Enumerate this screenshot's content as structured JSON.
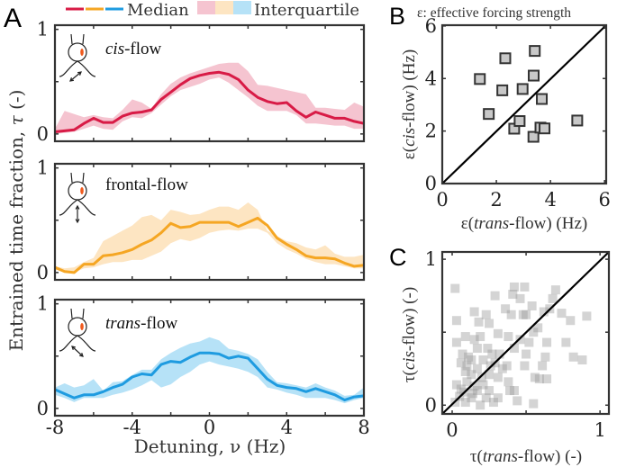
{
  "panel_labels": {
    "a": "A",
    "b": "B",
    "c": "C"
  },
  "legend": {
    "median_label": "Median",
    "iqr_label": "Interquartile"
  },
  "colors": {
    "cis": "#d81b46",
    "frontal": "#f5a623",
    "trans": "#1e9be0",
    "cis_band": "#f5c4d0",
    "frontal_band": "#fde5c2",
    "trans_band": "#b6e2f7",
    "scatter_b": "#c8c8c8",
    "scatter_c": "#999999"
  },
  "chart_data": [
    {
      "type": "area",
      "panel": "A",
      "ylabel": {
        "pre": "Entrained time fraction, ",
        "sym": "τ",
        "post": " (-)"
      },
      "xlabel": "Detuning, ν (Hz)",
      "xlim": [
        -8,
        8
      ],
      "ylim": [
        0,
        1
      ],
      "xticks": [
        "-8",
        "-4",
        "0",
        "4",
        "8"
      ],
      "yticks": [
        "0",
        "1"
      ],
      "x": [
        -8,
        -7.5,
        -7,
        -6.5,
        -6,
        -5.5,
        -5,
        -4.5,
        -4,
        -3.5,
        -3,
        -2.5,
        -2,
        -1.5,
        -1,
        -0.5,
        0,
        0.5,
        1,
        1.5,
        2,
        2.5,
        3,
        3.5,
        4,
        4.5,
        5,
        5.5,
        6,
        6.5,
        7,
        7.5,
        8
      ],
      "series": [
        {
          "key": "cis",
          "label_italic": "cis",
          "label_rest": "-flow",
          "median": [
            0.02,
            0.03,
            0.04,
            0.1,
            0.15,
            0.11,
            0.11,
            0.17,
            0.2,
            0.21,
            0.23,
            0.33,
            0.4,
            0.47,
            0.53,
            0.56,
            0.58,
            0.59,
            0.57,
            0.52,
            0.42,
            0.35,
            0.31,
            0.29,
            0.3,
            0.22,
            0.16,
            0.21,
            0.18,
            0.15,
            0.15,
            0.12,
            0.1
          ],
          "q_high": [
            0.05,
            0.22,
            0.19,
            0.16,
            0.18,
            0.16,
            0.15,
            0.23,
            0.33,
            0.3,
            0.24,
            0.38,
            0.48,
            0.54,
            0.58,
            0.61,
            0.64,
            0.67,
            0.68,
            0.68,
            0.6,
            0.47,
            0.46,
            0.44,
            0.42,
            0.4,
            0.38,
            0.25,
            0.25,
            0.24,
            0.23,
            0.3,
            0.26
          ],
          "q_low": [
            0,
            0.01,
            0.02,
            0.05,
            0.08,
            0.05,
            0.04,
            0.12,
            0.16,
            0.15,
            0.2,
            0.28,
            0.36,
            0.42,
            0.45,
            0.48,
            0.52,
            0.54,
            0.49,
            0.42,
            0.35,
            0.27,
            0.22,
            0.22,
            0.22,
            0.18,
            0.1,
            0.1,
            0.09,
            0.08,
            0.08,
            0.05,
            0.05
          ]
        },
        {
          "key": "frontal",
          "label_italic": "",
          "label_rest": "frontal-flow",
          "median": [
            0.05,
            0.01,
            0.0,
            0.08,
            0.08,
            0.16,
            0.17,
            0.19,
            0.22,
            0.27,
            0.31,
            0.38,
            0.47,
            0.43,
            0.44,
            0.48,
            0.48,
            0.48,
            0.48,
            0.44,
            0.48,
            0.52,
            0.45,
            0.33,
            0.27,
            0.22,
            0.16,
            0.14,
            0.14,
            0.13,
            0.09,
            0.06,
            0.07
          ],
          "q_high": [
            0.06,
            0.04,
            0.05,
            0.1,
            0.14,
            0.3,
            0.35,
            0.4,
            0.45,
            0.53,
            0.55,
            0.5,
            0.6,
            0.58,
            0.55,
            0.56,
            0.6,
            0.63,
            0.63,
            0.6,
            0.67,
            0.6,
            0.4,
            0.35,
            0.3,
            0.28,
            0.24,
            0.22,
            0.26,
            0.18,
            0.15,
            0.15,
            0.17
          ],
          "q_low": [
            0.03,
            0,
            0,
            0.04,
            0.05,
            0.08,
            0.1,
            0.1,
            0.12,
            0.12,
            0.16,
            0.2,
            0.28,
            0.32,
            0.3,
            0.33,
            0.38,
            0.4,
            0.41,
            0.4,
            0.42,
            0.42,
            0.38,
            0.28,
            0.22,
            0.18,
            0.13,
            0.1,
            0.08,
            0.08,
            0.06,
            0.04,
            0.04
          ]
        },
        {
          "key": "trans",
          "label_italic": "trans",
          "label_rest": "-flow",
          "median": [
            0.18,
            0.14,
            0.1,
            0.13,
            0.13,
            0.16,
            0.2,
            0.23,
            0.3,
            0.33,
            0.32,
            0.42,
            0.45,
            0.44,
            0.49,
            0.53,
            0.53,
            0.52,
            0.48,
            0.5,
            0.48,
            0.38,
            0.28,
            0.22,
            0.2,
            0.19,
            0.16,
            0.19,
            0.16,
            0.13,
            0.08,
            0.11,
            0.12
          ],
          "q_high": [
            0.2,
            0.24,
            0.2,
            0.22,
            0.28,
            0.17,
            0.25,
            0.26,
            0.32,
            0.37,
            0.37,
            0.47,
            0.53,
            0.58,
            0.62,
            0.64,
            0.68,
            0.65,
            0.57,
            0.55,
            0.52,
            0.47,
            0.35,
            0.25,
            0.24,
            0.22,
            0.2,
            0.24,
            0.2,
            0.17,
            0.12,
            0.13,
            0.2
          ],
          "q_low": [
            0.13,
            0.1,
            0.06,
            0.1,
            0.1,
            0.1,
            0.13,
            0.15,
            0.18,
            0.22,
            0.27,
            0.2,
            0.23,
            0.3,
            0.35,
            0.42,
            0.45,
            0.42,
            0.4,
            0.38,
            0.35,
            0.3,
            0.2,
            0.18,
            0.15,
            0.13,
            0.1,
            0.1,
            0.1,
            0.08,
            0.05,
            0.08,
            0.1
          ]
        }
      ]
    },
    {
      "type": "scatter",
      "panel": "B",
      "title": "ε: effective forcing strength",
      "xlabel": {
        "pre": "ε(",
        "it": "trans",
        "post": "-flow) (Hz)"
      },
      "ylabel": {
        "pre": "ε(",
        "it": "cis",
        "post": "-flow) (Hz)"
      },
      "xlim": [
        0,
        6
      ],
      "ylim": [
        0,
        6
      ],
      "xticks": [
        "0",
        "2",
        "4",
        "6"
      ],
      "yticks": [
        "0",
        "2",
        "4",
        "6"
      ],
      "identity_line": true,
      "points": [
        [
          1.39,
          3.98
        ],
        [
          1.72,
          2.65
        ],
        [
          2.33,
          4.77
        ],
        [
          2.22,
          3.55
        ],
        [
          2.97,
          3.6
        ],
        [
          2.66,
          2.09
        ],
        [
          2.86,
          2.38
        ],
        [
          3.38,
          4.11
        ],
        [
          3.42,
          5.05
        ],
        [
          3.68,
          3.22
        ],
        [
          3.37,
          1.78
        ],
        [
          3.63,
          2.13
        ],
        [
          3.78,
          2.1
        ],
        [
          4.99,
          2.4
        ]
      ]
    },
    {
      "type": "scatter",
      "panel": "C",
      "xlabel": {
        "pre": "τ(",
        "it": "trans",
        "post": "-flow) (-)"
      },
      "ylabel": {
        "pre": "τ(",
        "it": "cis",
        "post": "-flow) (-)"
      },
      "xlim": [
        0,
        1
      ],
      "ylim": [
        0,
        1
      ],
      "xticks": [
        "0",
        "1"
      ],
      "yticks": [
        "0",
        "1"
      ],
      "identity_line": true,
      "points": [
        [
          0.02,
          0.8
        ],
        [
          0.03,
          0.58
        ],
        [
          0.15,
          0.64
        ],
        [
          0.18,
          0.57
        ],
        [
          0.23,
          0.62
        ],
        [
          0.29,
          0.75
        ],
        [
          0.42,
          0.81
        ],
        [
          0.49,
          0.81
        ],
        [
          0.41,
          0.76
        ],
        [
          0.46,
          0.73
        ],
        [
          0.36,
          0.66
        ],
        [
          0.4,
          0.62
        ],
        [
          0.48,
          0.62
        ],
        [
          0.54,
          0.68
        ],
        [
          0.62,
          0.64
        ],
        [
          0.7,
          0.79
        ],
        [
          0.68,
          0.73
        ],
        [
          0.74,
          0.63
        ],
        [
          0.91,
          0.61
        ],
        [
          0.8,
          0.58
        ],
        [
          0.77,
          0.43
        ],
        [
          0.82,
          0.33
        ],
        [
          0.88,
          0.31
        ],
        [
          0.64,
          0.43
        ],
        [
          0.58,
          0.53
        ],
        [
          0.55,
          0.5
        ],
        [
          0.52,
          0.43
        ],
        [
          0.5,
          0.35
        ],
        [
          0.49,
          0.27
        ],
        [
          0.56,
          0.19
        ],
        [
          0.55,
          0.01
        ],
        [
          0.64,
          0.18
        ],
        [
          0.59,
          0.18
        ],
        [
          0.61,
          0.27
        ],
        [
          0.63,
          0.33
        ],
        [
          0.44,
          0.03
        ],
        [
          0.42,
          0.1
        ],
        [
          0.38,
          0.16
        ],
        [
          0.34,
          0.25
        ],
        [
          0.29,
          0.29
        ],
        [
          0.24,
          0.39
        ],
        [
          0.19,
          0.47
        ],
        [
          0.15,
          0.45
        ],
        [
          0.09,
          0.47
        ],
        [
          0.03,
          0.43
        ],
        [
          0.07,
          0.35
        ],
        [
          0.11,
          0.33
        ],
        [
          0.06,
          0.29
        ],
        [
          0.09,
          0.23
        ],
        [
          0.13,
          0.21
        ],
        [
          0.17,
          0.25
        ],
        [
          0.21,
          0.31
        ],
        [
          0.27,
          0.35
        ],
        [
          0.03,
          0.14
        ],
        [
          0.05,
          0.06
        ],
        [
          0.09,
          0.02
        ],
        [
          0.13,
          0.05
        ],
        [
          0.17,
          0.1
        ],
        [
          0.21,
          0.14
        ],
        [
          0.25,
          0.1
        ],
        [
          0.28,
          0.02
        ],
        [
          0.19,
          0.0
        ],
        [
          0.06,
          0.11
        ],
        [
          0.1,
          0.16
        ],
        [
          0.15,
          0.13
        ],
        [
          0.2,
          0.19
        ],
        [
          0.25,
          0.21
        ],
        [
          0.31,
          0.19
        ],
        [
          0.26,
          0.27
        ],
        [
          0.32,
          0.35
        ],
        [
          0.42,
          0.39
        ],
        [
          0.46,
          0.45
        ],
        [
          0.38,
          0.47
        ],
        [
          0.31,
          0.49
        ],
        [
          0.25,
          0.56
        ],
        [
          0.17,
          0.39
        ],
        [
          0.13,
          0.31
        ],
        [
          0.1,
          0.27
        ],
        [
          0.37,
          0.27
        ],
        [
          0.39,
          0.1
        ],
        [
          0.31,
          0.05
        ],
        [
          0.02,
          0.02
        ],
        [
          0.08,
          0.09
        ],
        [
          0.14,
          0.08
        ],
        [
          0.23,
          0.05
        ],
        [
          0.5,
          0.62
        ],
        [
          0.66,
          0.66
        ]
      ]
    }
  ]
}
